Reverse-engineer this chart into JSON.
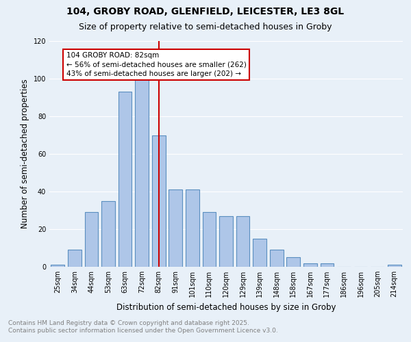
{
  "title_line1": "104, GROBY ROAD, GLENFIELD, LEICESTER, LE3 8GL",
  "title_line2": "Size of property relative to semi-detached houses in Groby",
  "xlabel": "Distribution of semi-detached houses by size in Groby",
  "ylabel": "Number of semi-detached properties",
  "categories": [
    "25sqm",
    "34sqm",
    "44sqm",
    "53sqm",
    "63sqm",
    "72sqm",
    "82sqm",
    "91sqm",
    "101sqm",
    "110sqm",
    "120sqm",
    "129sqm",
    "139sqm",
    "148sqm",
    "158sqm",
    "167sqm",
    "177sqm",
    "186sqm",
    "196sqm",
    "205sqm",
    "214sqm"
  ],
  "values": [
    1,
    9,
    29,
    35,
    93,
    101,
    70,
    41,
    41,
    29,
    27,
    27,
    15,
    9,
    5,
    2,
    2,
    0,
    0,
    0,
    1
  ],
  "bar_color": "#aec6e8",
  "bar_edge_color": "#5a8fc0",
  "property_label": "104 GROBY ROAD: 82sqm",
  "smaller_pct": "56%",
  "smaller_count": 262,
  "larger_pct": "43%",
  "larger_count": 202,
  "vline_color": "#cc0000",
  "vline_x_index": 6,
  "annotation_box_color": "#cc0000",
  "ylim": [
    0,
    120
  ],
  "yticks": [
    0,
    20,
    40,
    60,
    80,
    100,
    120
  ],
  "bg_color": "#e8f0f8",
  "plot_bg_color": "#e8f0f8",
  "grid_color": "#ffffff",
  "footer_line1": "Contains HM Land Registry data © Crown copyright and database right 2025.",
  "footer_line2": "Contains public sector information licensed under the Open Government Licence v3.0.",
  "title_fontsize": 10,
  "subtitle_fontsize": 9,
  "xlabel_fontsize": 8.5,
  "ylabel_fontsize": 8.5,
  "tick_fontsize": 7,
  "footer_fontsize": 6.5,
  "annot_fontsize": 7.5
}
